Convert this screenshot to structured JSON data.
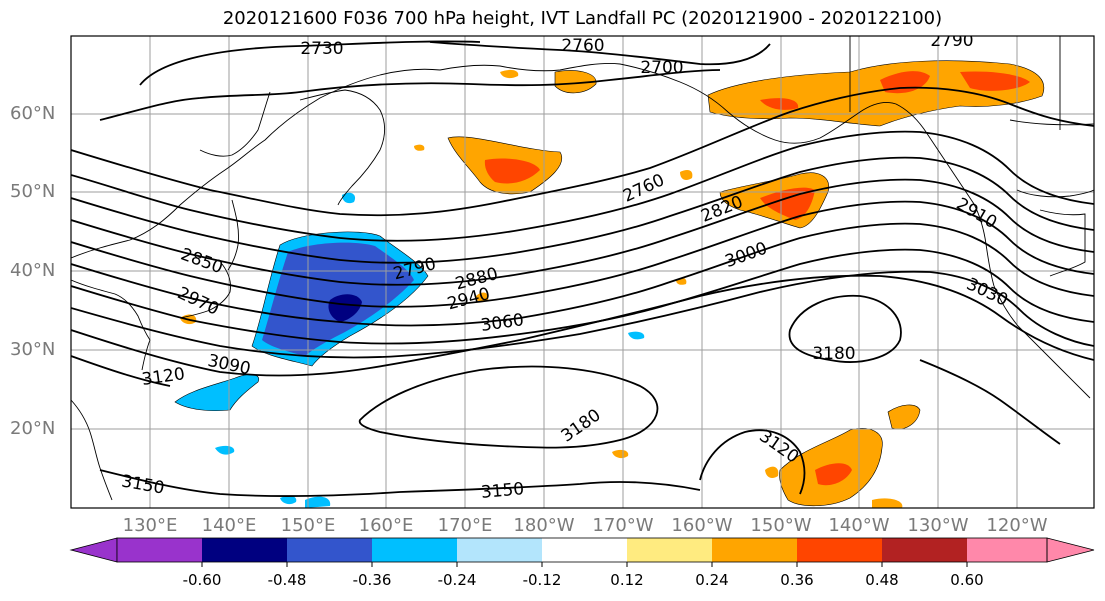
{
  "title": "2020121600 F036 700 hPa height, IVT Landfall PC (2020121900 - 2020122100)",
  "lat_labels": [
    "60°N",
    "50°N",
    "40°N",
    "30°N",
    "20°N"
  ],
  "lon_labels": [
    "130°E",
    "140°E",
    "150°E",
    "160°E",
    "170°E",
    "180°W",
    "170°W",
    "160°W",
    "150°W",
    "140°W",
    "130°W",
    "120°W"
  ],
  "contour_labels": [
    "2730",
    "2760",
    "2700",
    "2790",
    "2850",
    "2970",
    "3090",
    "3120",
    "3150",
    "2790",
    "2880",
    "2940",
    "3060",
    "2760",
    "2820",
    "3000",
    "2910",
    "3030",
    "3180",
    "3180",
    "3120",
    "3150"
  ],
  "colorbar": {
    "ticks": [
      "-0.60",
      "-0.48",
      "-0.36",
      "-0.24",
      "-0.12",
      "0.12",
      "0.24",
      "0.36",
      "0.48",
      "0.60"
    ],
    "colors": [
      "#9933cc",
      "#000080",
      "#3355cc",
      "#00bfff",
      "#b3e5fc",
      "#ffffff",
      "#ffeb80",
      "#ffa500",
      "#ff4500",
      "#b22222",
      "#ff88aa"
    ]
  }
}
